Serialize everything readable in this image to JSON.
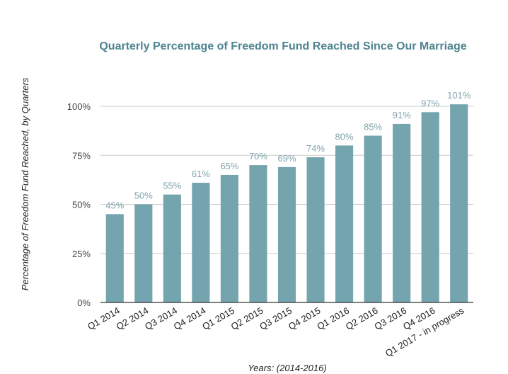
{
  "chart_data": {
    "type": "bar",
    "title": "Quarterly Percentage of Freedom Fund Reached Since Our Marriage",
    "xlabel": "Years: (2014-2016)",
    "ylabel": "Percentage of Freedom Fund Reached, by Quarters",
    "categories": [
      "Q1 2014",
      "Q2 2014",
      "Q3 2014",
      "Q4 2014",
      "Q1 2015",
      "Q2 2015",
      "Q3 2015",
      "Q4 2015",
      "Q1 2016",
      "Q2 2016",
      "Q3 2016",
      "Q4 2016",
      "Q1 2017 - in progress"
    ],
    "values": [
      45,
      50,
      55,
      61,
      65,
      70,
      69,
      74,
      80,
      85,
      91,
      97,
      101
    ],
    "data_labels": [
      "45%",
      "50%",
      "55%",
      "61%",
      "65%",
      "70%",
      "69%",
      "74%",
      "80%",
      "85%",
      "91%",
      "97%",
      "101%"
    ],
    "yticks": [
      0,
      25,
      50,
      75,
      100
    ],
    "ytick_labels": [
      "0%",
      "25%",
      "50%",
      "75%",
      "100%"
    ],
    "ylim": [
      0,
      100
    ],
    "grid": true,
    "legend": "none",
    "colors": {
      "bar": "#74a4ae",
      "title": "#4e8490",
      "data_label": "#7fa3ad",
      "grid": "#cccccc",
      "axis": "#333333"
    }
  }
}
